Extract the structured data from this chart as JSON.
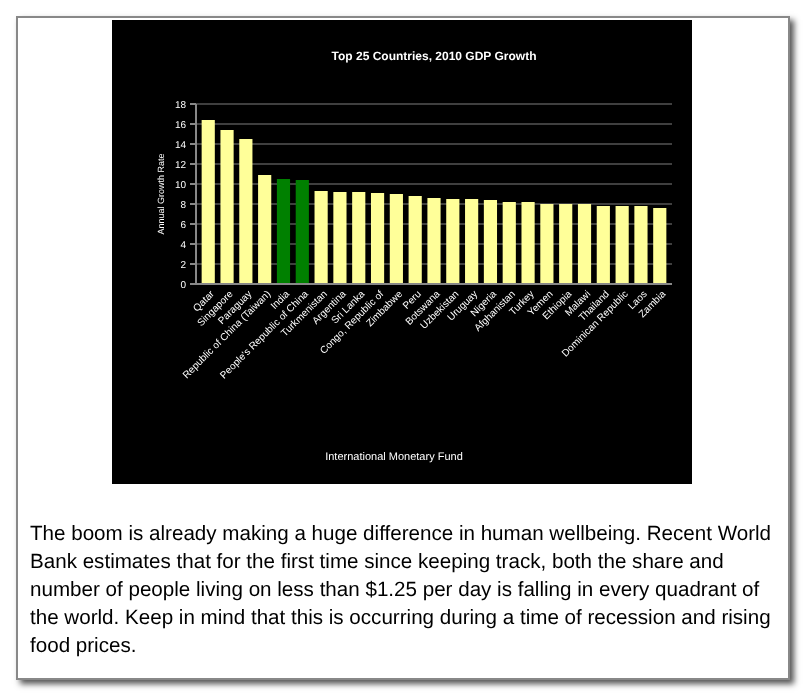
{
  "chart_data": {
    "type": "bar",
    "title": "Top 25 Countries, 2010 GDP Growth",
    "ylabel": "Annual Growth Rate",
    "categories": [
      "Qatar",
      "Singapore",
      "Paraguay",
      "Republic of China (Taiwan)",
      "India",
      "People's Republic of China",
      "Turkmenistan",
      "Argentina",
      "Sri Lanka",
      "Congo, Republic of",
      "Zimbabwe",
      "Peru",
      "Botswana",
      "Uzbekistan",
      "Uruguay",
      "Nigeria",
      "Afghanistan",
      "Turkey",
      "Yemen",
      "Ethiopia",
      "Malawi",
      "Thailand",
      "Dominican Republic",
      "Laos",
      "Zambia"
    ],
    "values": [
      16.4,
      15.4,
      14.5,
      10.9,
      10.5,
      10.4,
      9.3,
      9.2,
      9.2,
      9.1,
      9.0,
      8.8,
      8.6,
      8.5,
      8.5,
      8.4,
      8.2,
      8.2,
      8.0,
      8.0,
      8.0,
      7.8,
      7.8,
      7.8,
      7.6
    ],
    "colors": [
      "#ffff99",
      "#ffff99",
      "#ffff99",
      "#ffff99",
      "#008000",
      "#008000",
      "#ffff99",
      "#ffff99",
      "#ffff99",
      "#ffff99",
      "#ffff99",
      "#ffff99",
      "#ffff99",
      "#ffff99",
      "#ffff99",
      "#ffff99",
      "#ffff99",
      "#ffff99",
      "#ffff99",
      "#ffff99",
      "#ffff99",
      "#ffff99",
      "#ffff99",
      "#ffff99",
      "#ffff99"
    ],
    "ylim": [
      0,
      18
    ],
    "yticks": [
      0,
      2,
      4,
      6,
      8,
      10,
      12,
      14,
      16,
      18
    ],
    "grid": "y",
    "annotations": [
      "International Monetary Fund",
      "The boom is already making a huge difference in human wellbeing. Recent World Bank estimates that for the first time since keeping track, both the share and number of people living on less than $1.25 per day is falling in every quadrant of the world. Keep in mind that this is occurring during a time of recession and rising food prices."
    ]
  }
}
